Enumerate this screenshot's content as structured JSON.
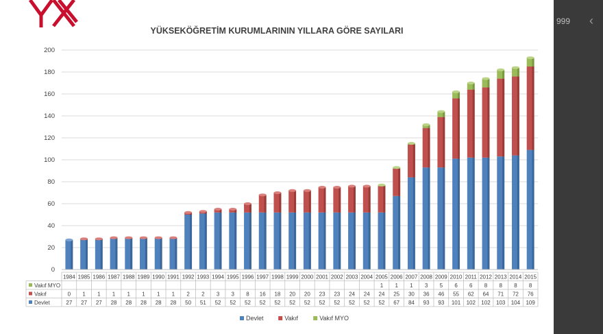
{
  "page": {
    "side_number": "999",
    "side_chevron": "‹"
  },
  "colors": {
    "devlet": "#4f81bd",
    "vakif": "#c0504d",
    "vakif_myo": "#9bbb59"
  },
  "chart_data": {
    "type": "bar",
    "stacked": true,
    "title": "YÜKSEKÖĞRETİM KURUMLARININ YILLARA GÖRE SAYILARI",
    "categories": [
      "1984",
      "1985",
      "1986",
      "1987",
      "1988",
      "1989",
      "1990",
      "1991",
      "1992",
      "1993",
      "1994",
      "1995",
      "1996",
      "1997",
      "1998",
      "1999",
      "2000",
      "2001",
      "2002",
      "2003",
      "2004",
      "2005",
      "2006",
      "2007",
      "2008",
      "2009",
      "2010",
      "2011",
      "2012",
      "2013",
      "2014",
      "2015"
    ],
    "series": [
      {
        "name": "Devlet",
        "values": [
          27,
          27,
          27,
          28,
          28,
          28,
          28,
          28,
          50,
          51,
          52,
          52,
          52,
          52,
          52,
          52,
          52,
          52,
          52,
          52,
          52,
          52,
          67,
          84,
          93,
          93,
          101,
          102,
          102,
          103,
          104,
          109
        ]
      },
      {
        "name": "Vakıf",
        "values": [
          0,
          1,
          1,
          1,
          1,
          1,
          1,
          1,
          2,
          2,
          3,
          3,
          8,
          16,
          18,
          20,
          20,
          23,
          23,
          24,
          24,
          24,
          25,
          30,
          36,
          46,
          55,
          62,
          64,
          71,
          72,
          76
        ]
      },
      {
        "name": "Vakıf MYO",
        "values": [
          "",
          "",
          "",
          "",
          "",
          "",
          "",
          "",
          "",
          "",
          "",
          "",
          "",
          "",
          "",
          "",
          "",
          "",
          "",
          "",
          "",
          "1",
          "1",
          "1",
          "3",
          "5",
          "6",
          "6",
          "8",
          "8",
          "8",
          "8"
        ]
      }
    ],
    "table_row_order": [
      "Vakıf MYO",
      "Vakıf",
      "Devlet"
    ],
    "yticks": [
      "0",
      "20",
      "40",
      "60",
      "80",
      "100",
      "120",
      "140",
      "160",
      "180",
      "200"
    ],
    "ylim": [
      0,
      200
    ],
    "grid": true,
    "legend": "bottom"
  }
}
